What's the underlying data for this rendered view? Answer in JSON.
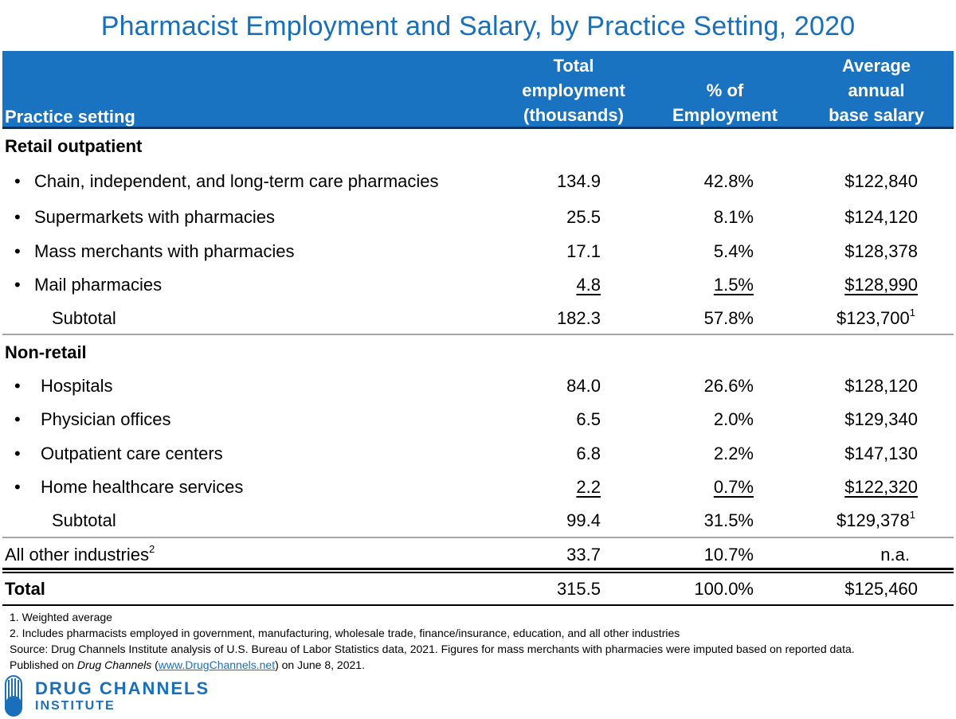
{
  "chart_data": {
    "type": "table",
    "title": "Pharmacist Employment and Salary, by Practice Setting, 2020",
    "columns": [
      [
        "Practice setting"
      ],
      [
        "Total",
        "employment",
        "(thousands)"
      ],
      [
        "% of",
        "Employment"
      ],
      [
        "Average",
        "annual",
        "base salary"
      ]
    ],
    "sections": [
      {
        "heading": "Retail outpatient",
        "rows": [
          {
            "label": "Chain, independent, and long-term care pharmacies",
            "employment": "134.9",
            "pct": "42.8%",
            "salary": "$122,840"
          },
          {
            "label": "Supermarkets with pharmacies",
            "employment": "25.5",
            "pct": "8.1%",
            "salary": "$124,120"
          },
          {
            "label": "Mass merchants with pharmacies",
            "employment": "17.1",
            "pct": "5.4%",
            "salary": "$128,378"
          },
          {
            "label": "Mail pharmacies",
            "employment": "4.8",
            "pct": "1.5%",
            "salary": "$128,990"
          }
        ],
        "subtotal": {
          "label": "Subtotal",
          "employment": "182.3",
          "pct": "57.8%",
          "salary": "$123,700",
          "note": "1"
        }
      },
      {
        "heading": "Non-retail",
        "rows": [
          {
            "label": "Hospitals",
            "employment": "84.0",
            "pct": "26.6%",
            "salary": "$128,120"
          },
          {
            "label": "Physician offices",
            "employment": "6.5",
            "pct": "2.0%",
            "salary": "$129,340"
          },
          {
            "label": "Outpatient care centers",
            "employment": "6.8",
            "pct": "2.2%",
            "salary": "$147,130"
          },
          {
            "label": "Home healthcare services",
            "employment": "2.2",
            "pct": "0.7%",
            "salary": "$122,320"
          }
        ],
        "subtotal": {
          "label": "Subtotal",
          "employment": "99.4",
          "pct": "31.5%",
          "salary": "$129,378",
          "note": "1"
        }
      }
    ],
    "other": {
      "label": "All other industries",
      "note": "2",
      "employment": "33.7",
      "pct": "10.7%",
      "salary": "n.a."
    },
    "total": {
      "label": "Total",
      "employment": "315.5",
      "pct": "100.0%",
      "salary": "$125,460"
    },
    "bullet": "•"
  },
  "footnotes": {
    "n1": "1. Weighted average",
    "n2": "2. Includes pharmacists employed in government, manufacturing, wholesale trade, finance/insurance, education, and all other industries",
    "source": "Source: Drug Channels Institute analysis of U.S. Bureau of Labor Statistics data, 2021. Figures for mass merchants with pharmacies were imputed based on reported data.",
    "published_prefix": "Published on ",
    "published_site": "Drug Channels",
    "published_open": " (",
    "published_url": "www.DrugChannels.net",
    "published_suffix": ") on June 8, 2021."
  },
  "logo": {
    "line1": "DRUG CHANNELS",
    "line2": "INSTITUTE"
  },
  "colors": {
    "accent": "#1a73c0",
    "title": "#1a6fbb",
    "rule": "#a6a6a6"
  }
}
